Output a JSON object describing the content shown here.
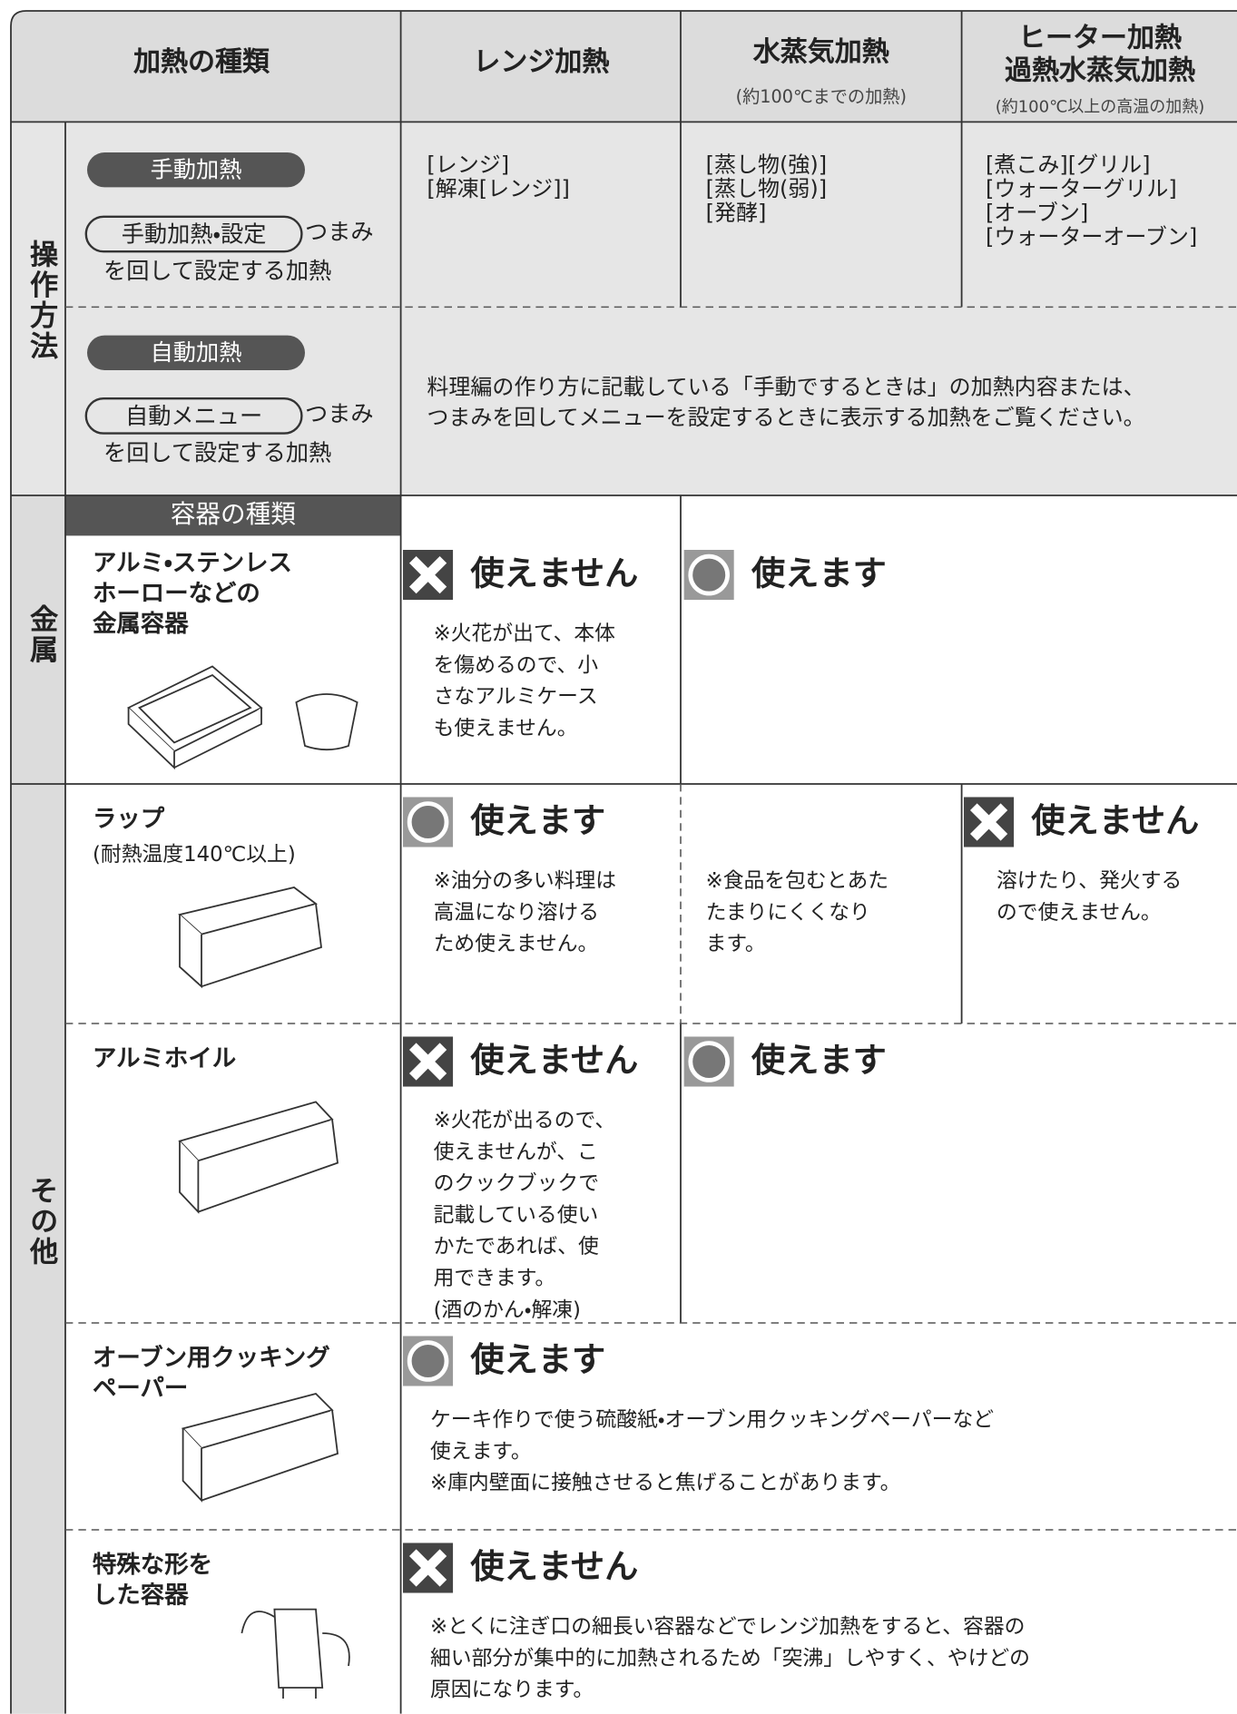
{
  "header": {
    "kind": "加熱の種類",
    "range": "レンジ加熱",
    "steam": {
      "title": "水蒸気加熱",
      "note": "(約100℃までの加熱)"
    },
    "heater": {
      "title": [
        "ヒーター加熱",
        "過熱水蒸気加熱"
      ],
      "note": "(約100℃以上の高温の加熱)"
    }
  },
  "operation": {
    "label": "操作方法",
    "manual": {
      "pill": "手動加熱",
      "knob": "手動加熱・設定",
      "knob_suffix": "つまみ",
      "desc": "を回して設定する加熱",
      "range": [
        "[レンジ]",
        "[解凍[レンジ]]"
      ],
      "steam": [
        "[蒸し物(強)]",
        "[蒸し物(弱)]",
        "[発酵]"
      ],
      "heater": [
        "[煮こみ][グリル]",
        "[ウォーターグリル]",
        "[オーブン]",
        "[ウォーターオーブン]"
      ]
    },
    "auto": {
      "pill": "自動加熱",
      "knob": "自動メニュー",
      "knob_suffix": "つまみ",
      "desc": "を回して設定する加熱",
      "text": [
        "料理編の作り方に記載している「手動でするときは」の加熱内容または、",
        "つまみを回してメニューを設定するときに表示する加熱をご覧ください。"
      ]
    }
  },
  "containers": {
    "header": "容器の種類",
    "metal_label": "金属",
    "other_label": "その他",
    "rows": [
      {
        "name": [
          "アルミ・ステンレス",
          "ホーローなどの",
          "金属容器"
        ],
        "range": {
          "verdict": "使えません",
          "note": [
            "※火花が出て、本体",
            "を傷めるので、小",
            "さなアルミケース",
            "も使えません。"
          ]
        },
        "other": {
          "verdict": "使えます"
        }
      },
      {
        "name": [
          "ラップ"
        ],
        "sub": "(耐熱温度140℃以上)",
        "range": {
          "verdict": "使えます",
          "note": [
            "※油分の多い料理は",
            "高温になり溶ける",
            "ため使えません。"
          ]
        },
        "steam": {
          "note": [
            "※食品を包むとあた",
            "たまりにくくなり",
            "ます。"
          ]
        },
        "heater": {
          "verdict": "使えません",
          "note": [
            "溶けたり、発火する",
            "ので使えません。"
          ]
        }
      },
      {
        "name": [
          "アルミホイル"
        ],
        "range": {
          "verdict": "使えません",
          "note": [
            "※火花が出るので、",
            "使えませんが、こ",
            "のクックブックで",
            "記載している使い",
            "かたであれば、使",
            "用できます。",
            "(酒のかん・解凍)"
          ]
        },
        "other": {
          "verdict": "使えます"
        }
      },
      {
        "name": [
          "オーブン用クッキング",
          "ペーパー"
        ],
        "all": {
          "verdict": "使えます",
          "note": [
            "ケーキ作りで使う硫酸紙・オーブン用クッキングペーパーなど",
            "使えます。",
            "※庫内壁面に接触させると焦げることがあります。"
          ]
        }
      },
      {
        "name": [
          "特殊な形を",
          "した容器"
        ],
        "all": {
          "verdict": "使えません",
          "note": [
            "※とくに注ぎ口の細長い容器などでレンジ加熱をすると、容器の",
            "細い部分が集中的に加熱されるため「突沸」しやすく、やけどの",
            "原因になります。"
          ]
        }
      }
    ]
  }
}
